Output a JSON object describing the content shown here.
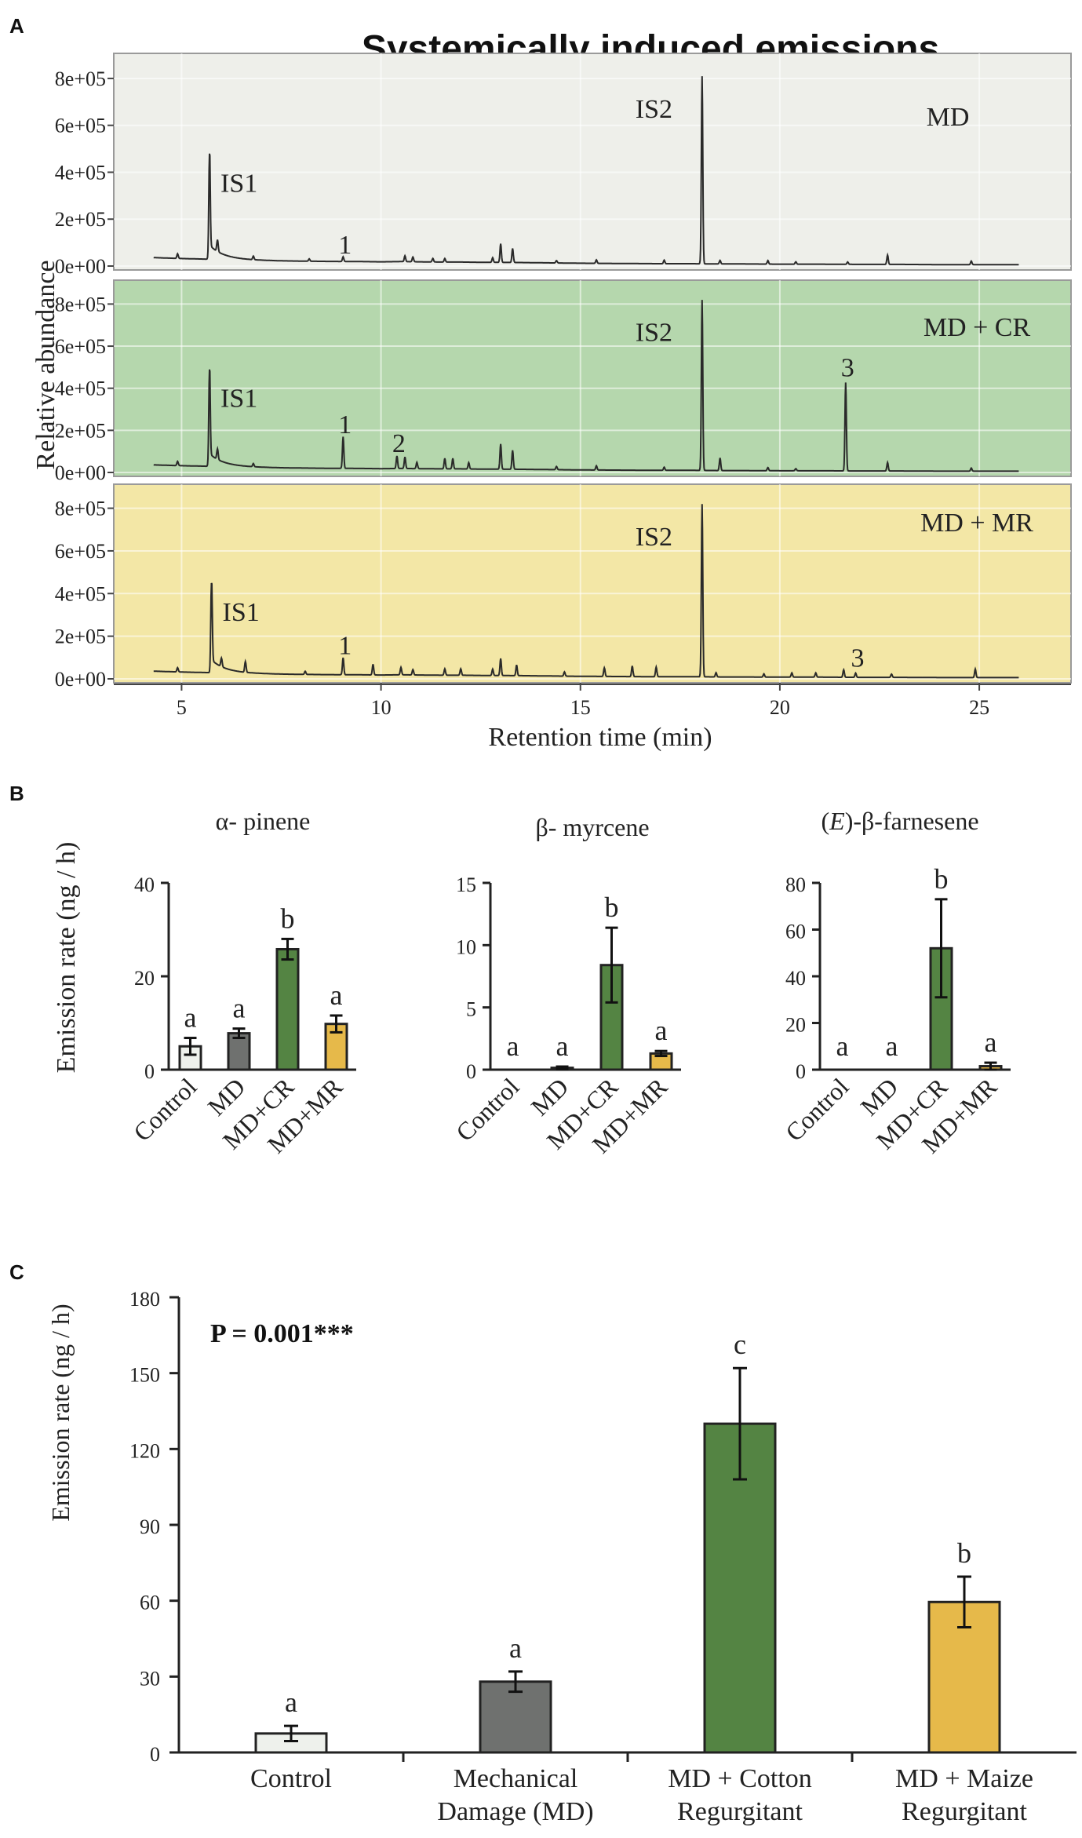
{
  "panel_letters": [
    "A",
    "B",
    "C"
  ],
  "chart_data": [
    {
      "id": "A",
      "type": "line",
      "title": "Systemically induced emissions",
      "xlabel": "Retention time (min)",
      "ylabel": "Relative abundance",
      "xlim": [
        3.3,
        27.3
      ],
      "ylim": [
        0,
        850000
      ],
      "xticks": [
        5,
        10,
        15,
        20,
        25
      ],
      "ytick_values": [
        0,
        200000,
        400000,
        600000,
        800000
      ],
      "ytick_labels": [
        "0e+00",
        "2e+05",
        "4e+05",
        "6e+05",
        "8e+05"
      ],
      "grid": true,
      "base": {
        "x": [
          4.3,
          5,
          5.5,
          6,
          6.5,
          7,
          7.5,
          8,
          8.5,
          9.5,
          10,
          10.5,
          11,
          11.5,
          12,
          12.5,
          13.5,
          14,
          14.5,
          15,
          16,
          17,
          17.8,
          18.5,
          19,
          20,
          21,
          22,
          23,
          24,
          25,
          26
        ],
        "y": [
          36000,
          32000,
          30000,
          28000,
          26000,
          24000,
          22000,
          21000,
          20000,
          19000,
          18000,
          19000,
          18000,
          17000,
          17000,
          16000,
          15000,
          14000,
          13000,
          12000,
          11000,
          10000,
          10000,
          9000,
          9000,
          8000,
          8000,
          7000,
          7000,
          6000,
          6000,
          6000
        ]
      },
      "series": [
        {
          "name": "MD",
          "label": "MD",
          "bg": "#eeefea",
          "peaks": [
            {
              "x": 4.9,
              "h": 20000
            },
            {
              "x": 5.7,
              "h": 450000,
              "label": "IS1",
              "label_color": "#333333"
            },
            {
              "x": 5.9,
              "h": 50000
            },
            {
              "x": 6.8,
              "h": 15000
            },
            {
              "x": 8.2,
              "h": 10000
            },
            {
              "x": 9.05,
              "h": 20000,
              "label": "1",
              "label_color": "#d62020"
            },
            {
              "x": 10.6,
              "h": 25000
            },
            {
              "x": 10.8,
              "h": 20000
            },
            {
              "x": 11.3,
              "h": 15000
            },
            {
              "x": 11.6,
              "h": 15000
            },
            {
              "x": 12.8,
              "h": 20000
            },
            {
              "x": 13.0,
              "h": 80000
            },
            {
              "x": 13.3,
              "h": 60000
            },
            {
              "x": 14.4,
              "h": 10000
            },
            {
              "x": 15.4,
              "h": 15000
            },
            {
              "x": 17.1,
              "h": 15000
            },
            {
              "x": 18.05,
              "h": 800000,
              "label": "IS2",
              "label_color": "#333333"
            },
            {
              "x": 18.5,
              "h": 15000
            },
            {
              "x": 19.7,
              "h": 15000
            },
            {
              "x": 20.4,
              "h": 10000
            },
            {
              "x": 21.7,
              "h": 10000
            },
            {
              "x": 22.7,
              "h": 40000
            },
            {
              "x": 24.8,
              "h": 15000
            }
          ]
        },
        {
          "name": "MD + CR",
          "label": "MD + CR",
          "bg": "#b5d7ad",
          "peaks": [
            {
              "x": 4.9,
              "h": 20000
            },
            {
              "x": 5.7,
              "h": 460000,
              "label": "IS1",
              "label_color": "#222222"
            },
            {
              "x": 5.9,
              "h": 50000
            },
            {
              "x": 6.8,
              "h": 15000
            },
            {
              "x": 9.05,
              "h": 150000,
              "label": "1",
              "label_color": "#d62020"
            },
            {
              "x": 10.4,
              "h": 60000,
              "label": "2",
              "label_color": "#d62020"
            },
            {
              "x": 10.6,
              "h": 55000
            },
            {
              "x": 10.9,
              "h": 30000
            },
            {
              "x": 11.6,
              "h": 50000
            },
            {
              "x": 11.8,
              "h": 50000
            },
            {
              "x": 12.2,
              "h": 30000
            },
            {
              "x": 13.0,
              "h": 120000
            },
            {
              "x": 13.3,
              "h": 90000
            },
            {
              "x": 14.4,
              "h": 15000
            },
            {
              "x": 15.4,
              "h": 20000
            },
            {
              "x": 17.1,
              "h": 15000
            },
            {
              "x": 18.05,
              "h": 810000,
              "label": "IS2",
              "label_color": "#222222"
            },
            {
              "x": 18.5,
              "h": 60000
            },
            {
              "x": 19.7,
              "h": 15000
            },
            {
              "x": 20.4,
              "h": 10000
            },
            {
              "x": 21.65,
              "h": 420000,
              "label": "3",
              "label_color": "#d62020"
            },
            {
              "x": 22.7,
              "h": 40000
            },
            {
              "x": 24.8,
              "h": 15000
            }
          ]
        },
        {
          "name": "MD + MR",
          "label": "MD + MR",
          "bg": "#f3e7a6",
          "peaks": [
            {
              "x": 4.9,
              "h": 20000
            },
            {
              "x": 5.75,
              "h": 420000,
              "label": "IS1",
              "label_color": "#222222"
            },
            {
              "x": 6.0,
              "h": 40000
            },
            {
              "x": 6.6,
              "h": 50000
            },
            {
              "x": 8.1,
              "h": 15000
            },
            {
              "x": 9.05,
              "h": 80000,
              "label": "1",
              "label_color": "#d62020"
            },
            {
              "x": 9.8,
              "h": 50000
            },
            {
              "x": 10.5,
              "h": 35000
            },
            {
              "x": 10.8,
              "h": 25000
            },
            {
              "x": 11.6,
              "h": 30000
            },
            {
              "x": 12.0,
              "h": 30000
            },
            {
              "x": 12.8,
              "h": 30000
            },
            {
              "x": 13.0,
              "h": 80000
            },
            {
              "x": 13.4,
              "h": 50000
            },
            {
              "x": 14.6,
              "h": 20000
            },
            {
              "x": 15.6,
              "h": 40000
            },
            {
              "x": 16.3,
              "h": 50000
            },
            {
              "x": 16.9,
              "h": 45000
            },
            {
              "x": 18.05,
              "h": 810000,
              "label": "IS2",
              "label_color": "#222222"
            },
            {
              "x": 18.4,
              "h": 20000
            },
            {
              "x": 19.6,
              "h": 15000
            },
            {
              "x": 20.3,
              "h": 20000
            },
            {
              "x": 20.9,
              "h": 20000
            },
            {
              "x": 21.6,
              "h": 35000
            },
            {
              "x": 21.9,
              "h": 20000,
              "label": "3",
              "label_color": "#d62020"
            },
            {
              "x": 22.8,
              "h": 15000
            },
            {
              "x": 24.9,
              "h": 40000
            }
          ]
        }
      ]
    },
    {
      "id": "B1",
      "type": "bar",
      "title": "α- pinene",
      "ylabel": "Emission rate (ng / h)",
      "ylim": [
        0,
        40
      ],
      "yticks": [
        0,
        20,
        40
      ],
      "categories": [
        "Control",
        "MD",
        "MD+CR",
        "MD+MR"
      ],
      "values": [
        5.0,
        7.8,
        25.8,
        9.8
      ],
      "errors": [
        1.8,
        1.0,
        2.2,
        1.8
      ],
      "letters": [
        "a",
        "a",
        "b",
        "a"
      ],
      "colors": [
        "#eef1ec",
        "#6f716f",
        "#548443",
        "#e6b94a"
      ]
    },
    {
      "id": "B2",
      "type": "bar",
      "title": "β- myrcene",
      "ylim": [
        0,
        15
      ],
      "yticks": [
        0,
        5,
        10,
        15
      ],
      "categories": [
        "Control",
        "MD",
        "MD+CR",
        "MD+MR"
      ],
      "values": [
        0,
        0.15,
        8.4,
        1.3
      ],
      "errors": [
        0,
        0.1,
        3.0,
        0.2
      ],
      "letters": [
        "a",
        "a",
        "b",
        "a"
      ],
      "colors": [
        "#eef1ec",
        "#6f716f",
        "#548443",
        "#e6b94a"
      ]
    },
    {
      "id": "B3",
      "type": "bar",
      "title": "(E)-β-farnesene",
      "title_parts": [
        "(",
        "E",
        ")-β-farnesene"
      ],
      "ylim": [
        0,
        80
      ],
      "yticks": [
        0,
        20,
        40,
        60,
        80
      ],
      "categories": [
        "Control",
        "MD",
        "MD+CR",
        "MD+MR"
      ],
      "values": [
        0,
        0,
        52,
        1.5
      ],
      "errors": [
        0,
        0,
        21,
        1.5
      ],
      "letters": [
        "a",
        "a",
        "b",
        "a"
      ],
      "colors": [
        "#eef1ec",
        "#6f716f",
        "#548443",
        "#e6b94a"
      ]
    },
    {
      "id": "C",
      "type": "bar",
      "ylabel": "Emission rate (ng / h)",
      "ylim": [
        0,
        180
      ],
      "yticks": [
        0,
        30,
        60,
        90,
        120,
        150,
        180
      ],
      "categories": [
        "Control",
        "Mechanical Damage (MD)",
        "MD + Cotton Regurgitant",
        "MD + Maize Regurgitant"
      ],
      "category_lines": [
        [
          "Control"
        ],
        [
          "Mechanical",
          "Damage (MD)"
        ],
        [
          "MD + Cotton",
          "Regurgitant"
        ],
        [
          "MD + Maize",
          "Regurgitant"
        ]
      ],
      "values": [
        7.5,
        28,
        130,
        59.5
      ],
      "errors": [
        3,
        4,
        22,
        10
      ],
      "letters": [
        "a",
        "a",
        "c",
        "b"
      ],
      "colors": [
        "#eef1ec",
        "#6f716f",
        "#548443",
        "#e6b94a"
      ],
      "annotation": "P = 0.001***"
    }
  ]
}
